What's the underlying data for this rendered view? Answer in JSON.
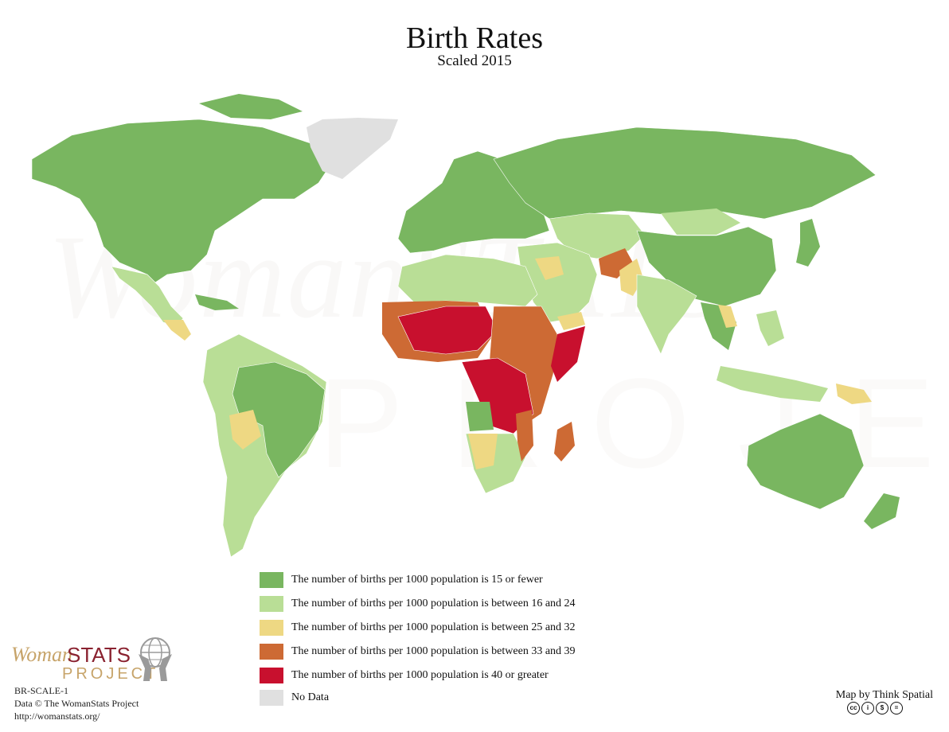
{
  "title": "Birth Rates",
  "subtitle": "Scaled 2015",
  "legend": {
    "items": [
      {
        "label": "The number of births per 1000 population is 15 or fewer",
        "color": "#79b660"
      },
      {
        "label": "The number of births per 1000 population is between 16 and 24",
        "color": "#b9de96"
      },
      {
        "label": "The number of births per 1000 population is between 25 and 32",
        "color": "#eed883"
      },
      {
        "label": "The number of births per 1000 population is between 33 and 39",
        "color": "#cd6a34"
      },
      {
        "label": "The number of births per 1000 population is 40 or greater",
        "color": "#c8102e"
      },
      {
        "label": "No Data",
        "color": "#e0e0e0"
      }
    ]
  },
  "logo": {
    "woman": "Woman",
    "stats": "STATS",
    "project": "PROJECT"
  },
  "watermark": {
    "line1": "WomanSTATS",
    "line2": "PROJECT"
  },
  "map_code": "BR-SCALE-1",
  "data_credit": "Data © The WomanStats Project",
  "url": "http://womanstats.org/",
  "map_credit": "Map by Think Spatial",
  "license_icons": [
    "cc",
    "by",
    "nc",
    "nd"
  ],
  "license_glyphs": [
    "cc",
    "i",
    "$",
    "="
  ],
  "colors": {
    "c1": "#79b660",
    "c2": "#b9de96",
    "c3": "#eed883",
    "c4": "#cd6a34",
    "c5": "#c8102e",
    "nodata": "#e0e0e0"
  }
}
